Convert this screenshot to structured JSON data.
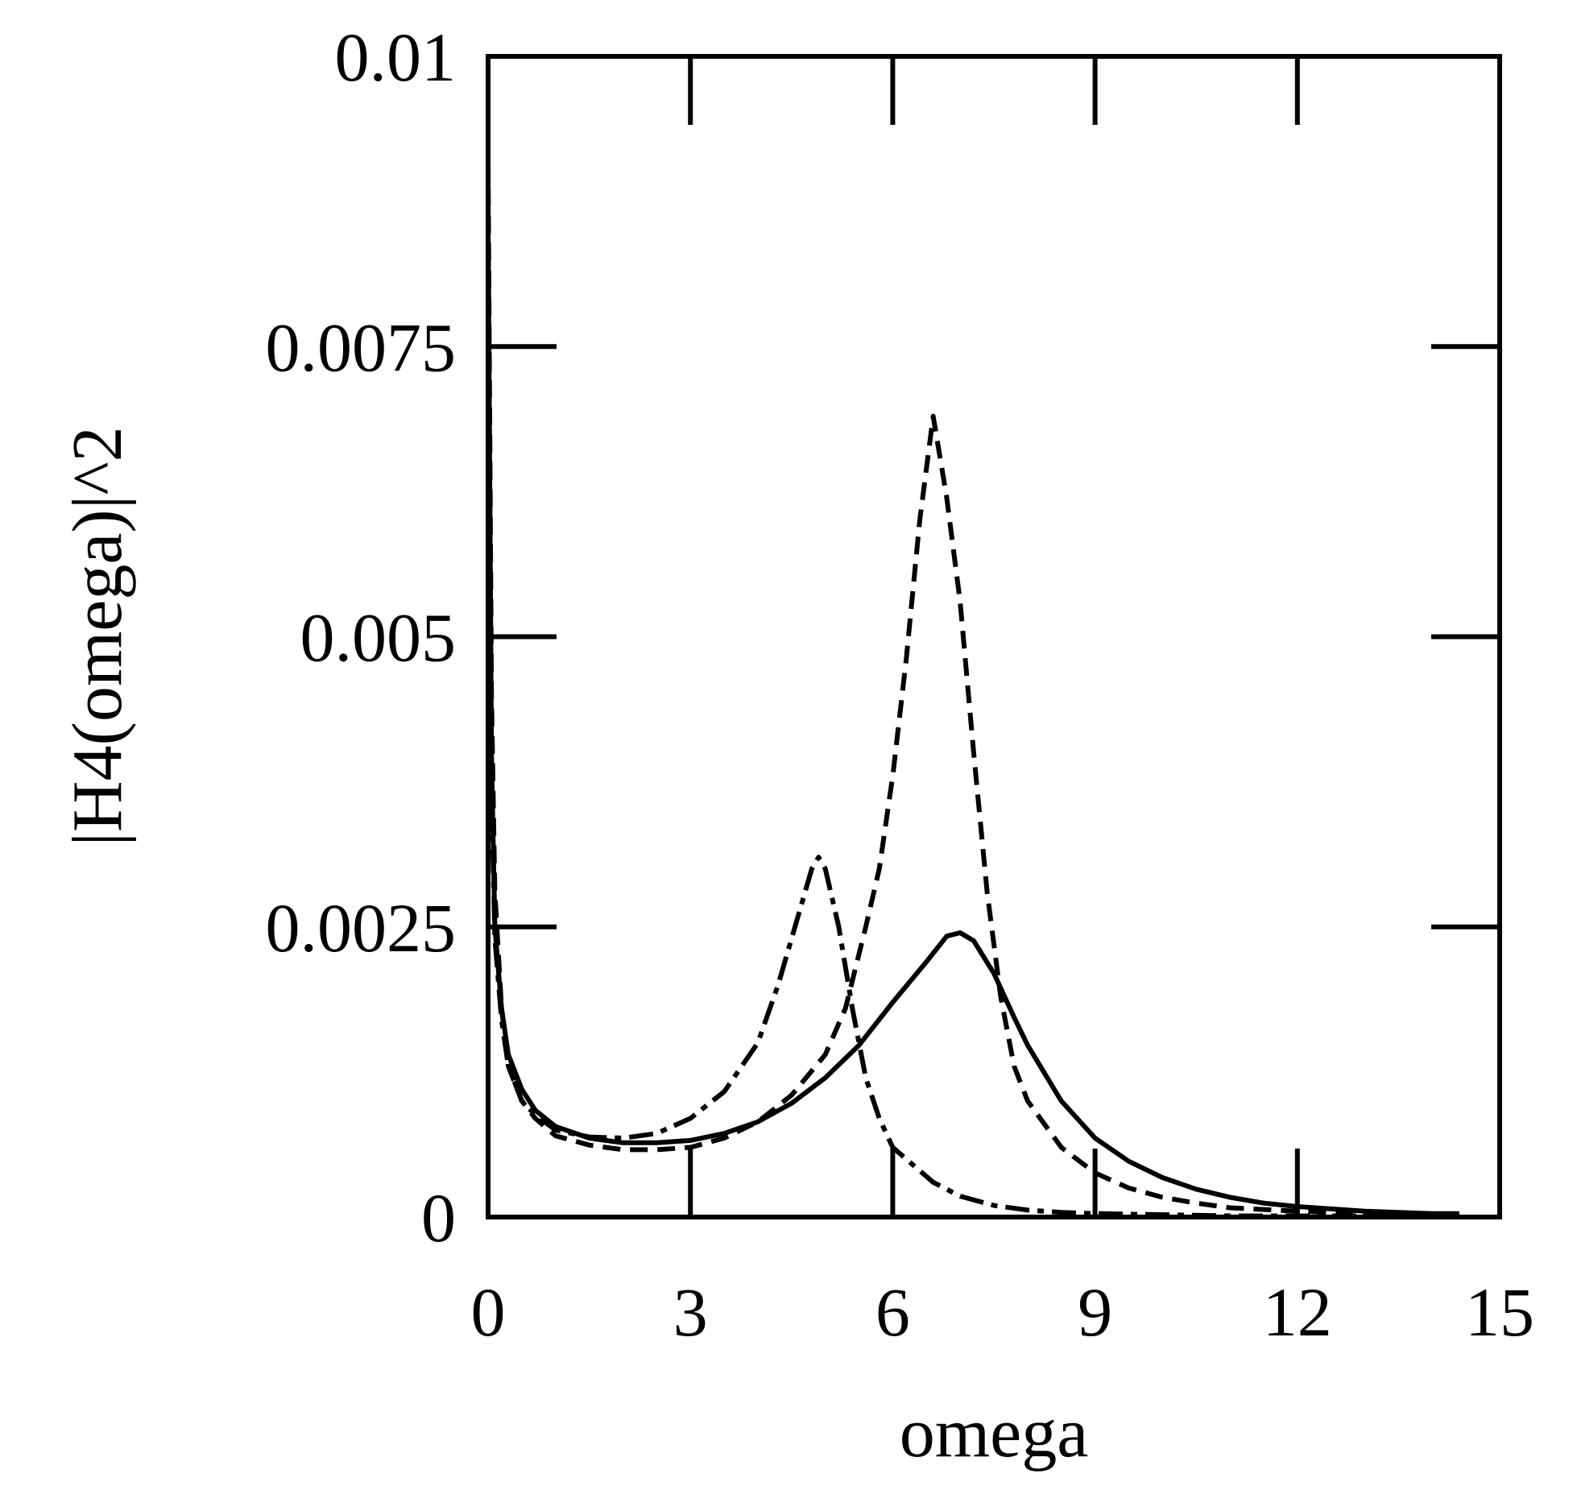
{
  "chart_data": {
    "type": "line",
    "title": "",
    "xlabel": "omega",
    "ylabel": "|H4(omega)|^2",
    "xlim": [
      0,
      15
    ],
    "ylim": [
      0,
      0.01
    ],
    "x_ticks": [
      "0",
      "3",
      "6",
      "9",
      "12",
      "15"
    ],
    "y_ticks": [
      "0",
      "0.0025",
      "0.005",
      "0.0075",
      "0.01"
    ],
    "grid": false,
    "legend": "none",
    "colors": {
      "line": "#000000",
      "background": "#ffffff"
    },
    "series": [
      {
        "name": "solid",
        "style": "solid",
        "x": [
          0.0,
          0.05,
          0.1,
          0.2,
          0.3,
          0.5,
          0.7,
          1.0,
          1.5,
          2.0,
          2.5,
          3.0,
          3.5,
          4.0,
          4.5,
          5.0,
          5.5,
          6.0,
          6.5,
          6.8,
          7.0,
          7.2,
          7.5,
          7.8,
          8.0,
          8.5,
          9.0,
          9.5,
          10.0,
          10.5,
          11.0,
          11.5,
          12.0,
          13.0,
          14.0,
          14.4
        ],
        "y": [
          0.0086,
          0.004,
          0.0025,
          0.0018,
          0.0014,
          0.0011,
          0.00092,
          0.00078,
          0.00068,
          0.00064,
          0.00064,
          0.00066,
          0.00072,
          0.00082,
          0.00098,
          0.0012,
          0.00148,
          0.00185,
          0.0022,
          0.00242,
          0.00245,
          0.00238,
          0.0021,
          0.00172,
          0.00148,
          0.001,
          0.00068,
          0.00048,
          0.00034,
          0.00024,
          0.00017,
          0.00012,
          9e-05,
          5e-05,
          3e-05,
          3e-05
        ]
      },
      {
        "name": "dashed",
        "style": "dashed",
        "x": [
          0.0,
          0.05,
          0.1,
          0.2,
          0.3,
          0.5,
          0.7,
          1.0,
          1.5,
          2.0,
          2.5,
          3.0,
          3.5,
          4.0,
          4.5,
          5.0,
          5.3,
          5.6,
          5.8,
          6.0,
          6.2,
          6.4,
          6.6,
          6.8,
          7.0,
          7.2,
          7.4,
          7.6,
          7.8,
          8.0,
          8.5,
          9.0,
          9.5,
          10.0,
          10.5,
          11.0,
          12.0,
          13.0,
          14.0,
          14.4
        ],
        "y": [
          0.0091,
          0.0045,
          0.0028,
          0.0018,
          0.0013,
          0.001,
          0.00085,
          0.0007,
          0.00062,
          0.00058,
          0.00058,
          0.0006,
          0.00068,
          0.00082,
          0.00105,
          0.0014,
          0.0018,
          0.0025,
          0.003,
          0.0038,
          0.0048,
          0.006,
          0.0069,
          0.0062,
          0.0053,
          0.004,
          0.0028,
          0.0019,
          0.0013,
          0.001,
          0.0006,
          0.00038,
          0.00025,
          0.00017,
          0.00012,
          8e-05,
          5e-05,
          3e-05,
          2e-05,
          2e-05
        ]
      },
      {
        "name": "dash-dot",
        "style": "dash-dot",
        "x": [
          0.0,
          0.05,
          0.1,
          0.2,
          0.3,
          0.5,
          0.7,
          1.0,
          1.5,
          2.0,
          2.5,
          3.0,
          3.5,
          4.0,
          4.3,
          4.6,
          4.8,
          4.9,
          5.0,
          5.2,
          5.4,
          5.6,
          5.8,
          6.0,
          6.3,
          6.6,
          7.0,
          7.5,
          8.0,
          8.5,
          9.0,
          10.0,
          11.0,
          12.0,
          13.0,
          14.0,
          14.4
        ],
        "y": [
          0.0088,
          0.0037,
          0.0024,
          0.0017,
          0.0013,
          0.001,
          0.00088,
          0.00075,
          0.00069,
          0.00068,
          0.00072,
          0.00085,
          0.00108,
          0.0015,
          0.002,
          0.0026,
          0.003,
          0.0031,
          0.003,
          0.0025,
          0.0018,
          0.0012,
          0.00085,
          0.0006,
          0.00045,
          0.0003,
          0.00018,
          0.0001,
          6e-05,
          4e-05,
          3e-05,
          2e-05,
          1e-05,
          1e-05,
          1e-05,
          1e-05,
          1e-05
        ]
      }
    ]
  }
}
